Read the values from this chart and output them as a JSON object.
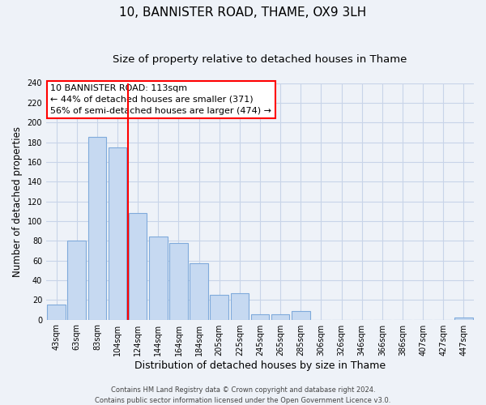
{
  "title": "10, BANNISTER ROAD, THAME, OX9 3LH",
  "subtitle": "Size of property relative to detached houses in Thame",
  "xlabel": "Distribution of detached houses by size in Thame",
  "ylabel": "Number of detached properties",
  "bar_labels": [
    "43sqm",
    "63sqm",
    "83sqm",
    "104sqm",
    "124sqm",
    "144sqm",
    "164sqm",
    "184sqm",
    "205sqm",
    "225sqm",
    "245sqm",
    "265sqm",
    "285sqm",
    "306sqm",
    "326sqm",
    "346sqm",
    "366sqm",
    "386sqm",
    "407sqm",
    "427sqm",
    "447sqm"
  ],
  "bar_values": [
    15,
    80,
    185,
    175,
    108,
    84,
    78,
    57,
    25,
    27,
    5,
    5,
    9,
    0,
    0,
    0,
    0,
    0,
    0,
    0,
    2
  ],
  "bar_color": "#c6d9f1",
  "bar_edge_color": "#7faadb",
  "vline_x": 3.5,
  "vline_color": "red",
  "annotation_line1": "10 BANNISTER ROAD: 113sqm",
  "annotation_line2": "← 44% of detached houses are smaller (371)",
  "annotation_line3": "56% of semi-detached houses are larger (474) →",
  "annotation_box_color": "white",
  "annotation_box_edge_color": "red",
  "ylim": [
    0,
    240
  ],
  "yticks": [
    0,
    20,
    40,
    60,
    80,
    100,
    120,
    140,
    160,
    180,
    200,
    220,
    240
  ],
  "footer_line1": "Contains HM Land Registry data © Crown copyright and database right 2024.",
  "footer_line2": "Contains public sector information licensed under the Open Government Licence v3.0.",
  "title_fontsize": 11,
  "subtitle_fontsize": 9.5,
  "xlabel_fontsize": 9,
  "ylabel_fontsize": 8.5,
  "tick_fontsize": 7,
  "annotation_fontsize": 8,
  "footer_fontsize": 6,
  "grid_color": "#c8d4e8",
  "background_color": "#eef2f8"
}
